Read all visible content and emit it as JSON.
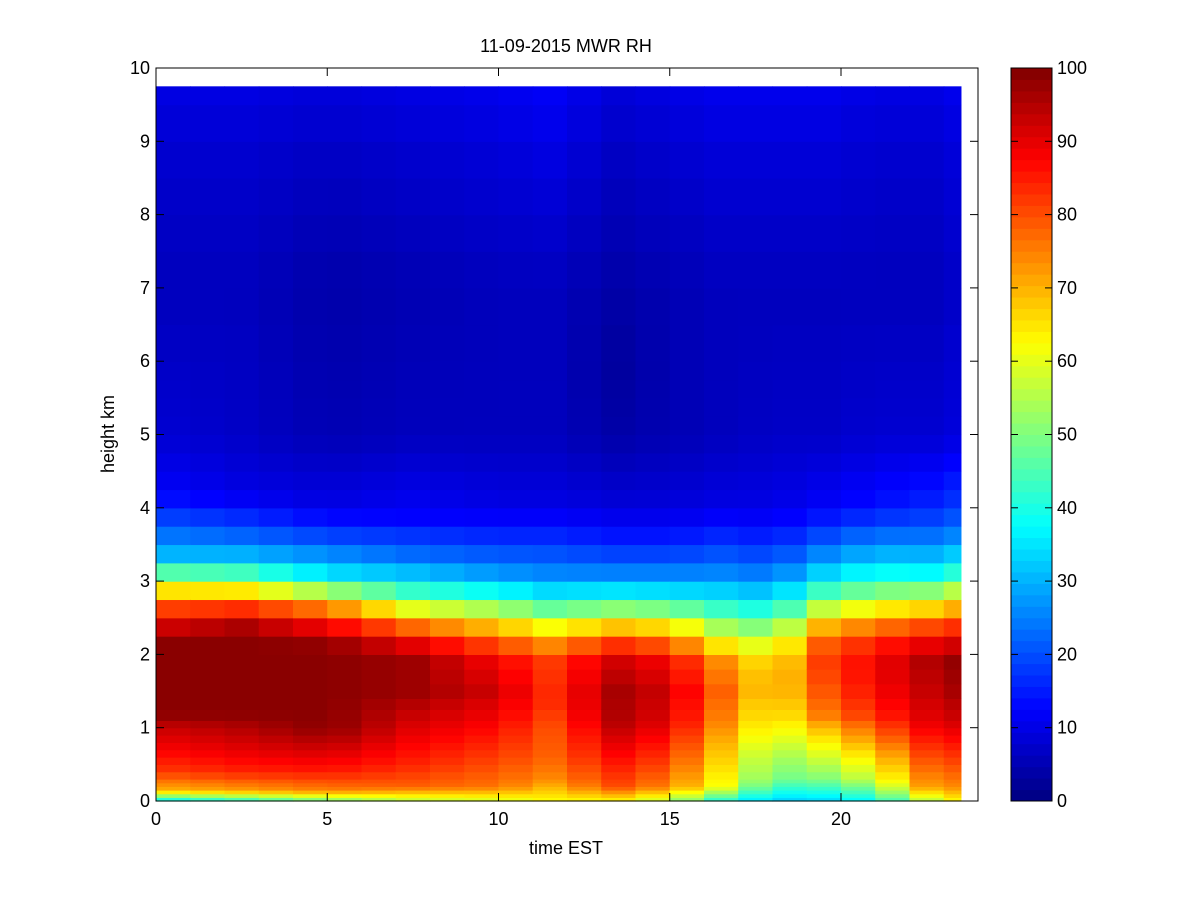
{
  "chart_data": {
    "type": "heatmap",
    "title": "11-09-2015 MWR RH",
    "xlabel": "time EST",
    "ylabel": "height km",
    "xlim": [
      0,
      24
    ],
    "ylim": [
      0,
      10
    ],
    "x_ticks": [
      "0",
      "5",
      "10",
      "15",
      "20"
    ],
    "y_ticks": [
      "0",
      "1",
      "2",
      "3",
      "4",
      "5",
      "6",
      "7",
      "8",
      "9",
      "10"
    ],
    "colorbar": {
      "colormap": "jet",
      "range": [
        0,
        100
      ],
      "ticks": [
        "0",
        "10",
        "20",
        "30",
        "40",
        "50",
        "60",
        "70",
        "80",
        "90",
        "100"
      ]
    },
    "grid": false,
    "x_centers": [
      0.5,
      1.5,
      2.5,
      3.5,
      4.5,
      5.5,
      6.5,
      7.5,
      8.5,
      9.5,
      10.5,
      11.5,
      12.5,
      13.5,
      14.5,
      15.5,
      16.5,
      17.5,
      18.5,
      19.5,
      20.5,
      21.5,
      22.5,
      23.5
    ],
    "height_levels_km": [
      0,
      0.05,
      0.1,
      0.15,
      0.2,
      0.25,
      0.3,
      0.4,
      0.5,
      0.6,
      0.7,
      0.8,
      0.9,
      1.0,
      1.1,
      1.25,
      1.4,
      1.6,
      1.8,
      2.0,
      2.25,
      2.5,
      2.75,
      3.0,
      3.25,
      3.5,
      3.75,
      4.0,
      4.25,
      4.5,
      4.75,
      5.0,
      5.25,
      5.5,
      5.75,
      6.0,
      6.5,
      7.0,
      7.5,
      8.0,
      8.5,
      9.0,
      9.5,
      9.75
    ],
    "profiles": [
      {
        "time": 0.5,
        "rh": [
          [
            0,
            35
          ],
          [
            0.15,
            70
          ],
          [
            0.4,
            82
          ],
          [
            0.7,
            88
          ],
          [
            1.0,
            93
          ],
          [
            1.2,
            99
          ],
          [
            2.2,
            99
          ],
          [
            2.5,
            88
          ],
          [
            2.75,
            75
          ],
          [
            3.0,
            55
          ],
          [
            3.3,
            32
          ],
          [
            3.7,
            22
          ],
          [
            4.2,
            12
          ],
          [
            5,
            8
          ],
          [
            7,
            6
          ],
          [
            9,
            8
          ],
          [
            9.75,
            10
          ]
        ]
      },
      {
        "time": 2.5,
        "rh": [
          [
            0,
            40
          ],
          [
            0.15,
            72
          ],
          [
            0.4,
            84
          ],
          [
            0.7,
            90
          ],
          [
            1.0,
            95
          ],
          [
            1.2,
            99
          ],
          [
            2.3,
            99
          ],
          [
            2.55,
            88
          ],
          [
            2.8,
            72
          ],
          [
            3.0,
            52
          ],
          [
            3.3,
            32
          ],
          [
            3.7,
            20
          ],
          [
            4.2,
            10
          ],
          [
            5,
            7
          ],
          [
            7,
            6
          ],
          [
            9,
            8
          ],
          [
            9.75,
            10
          ]
        ]
      },
      {
        "time": 5,
        "rh": [
          [
            0,
            48
          ],
          [
            0.15,
            75
          ],
          [
            0.4,
            85
          ],
          [
            0.7,
            92
          ],
          [
            1.0,
            99
          ],
          [
            2.1,
            99
          ],
          [
            2.35,
            90
          ],
          [
            2.6,
            78
          ],
          [
            2.85,
            55
          ],
          [
            3.1,
            35
          ],
          [
            3.5,
            22
          ],
          [
            4,
            10
          ],
          [
            5,
            5
          ],
          [
            7,
            4
          ],
          [
            9,
            7
          ],
          [
            9.75,
            9
          ]
        ]
      },
      {
        "time": 7.5,
        "rh": [
          [
            0,
            55
          ],
          [
            0.2,
            78
          ],
          [
            0.5,
            84
          ],
          [
            0.8,
            88
          ],
          [
            1.1,
            92
          ],
          [
            1.5,
            97
          ],
          [
            1.9,
            97
          ],
          [
            2.2,
            88
          ],
          [
            2.5,
            70
          ],
          [
            2.75,
            50
          ],
          [
            3.0,
            35
          ],
          [
            3.4,
            22
          ],
          [
            3.9,
            12
          ],
          [
            5,
            6
          ],
          [
            7,
            5
          ],
          [
            9,
            8
          ],
          [
            9.75,
            10
          ]
        ]
      },
      {
        "time": 10,
        "rh": [
          [
            0,
            58
          ],
          [
            0.2,
            76
          ],
          [
            0.5,
            80
          ],
          [
            0.8,
            84
          ],
          [
            1.1,
            88
          ],
          [
            1.5,
            92
          ],
          [
            1.9,
            88
          ],
          [
            2.2,
            78
          ],
          [
            2.5,
            62
          ],
          [
            2.75,
            45
          ],
          [
            3.0,
            30
          ],
          [
            3.5,
            18
          ],
          [
            4,
            10
          ],
          [
            5,
            6
          ],
          [
            7,
            6
          ],
          [
            9,
            9
          ],
          [
            9.75,
            11
          ]
        ]
      },
      {
        "time": 11.5,
        "rh": [
          [
            0,
            62
          ],
          [
            0.3,
            74
          ],
          [
            0.6,
            78
          ],
          [
            1.0,
            80
          ],
          [
            1.4,
            84
          ],
          [
            1.9,
            82
          ],
          [
            2.2,
            72
          ],
          [
            2.5,
            55
          ],
          [
            2.75,
            40
          ],
          [
            3.0,
            28
          ],
          [
            3.5,
            18
          ],
          [
            4,
            10
          ],
          [
            5,
            6
          ],
          [
            7,
            6
          ],
          [
            9,
            10
          ],
          [
            9.75,
            12
          ]
        ]
      },
      {
        "time": 13.5,
        "rh": [
          [
            0,
            62
          ],
          [
            0.2,
            80
          ],
          [
            0.5,
            85
          ],
          [
            0.8,
            90
          ],
          [
            1.1,
            95
          ],
          [
            1.5,
            96
          ],
          [
            1.9,
            92
          ],
          [
            2.2,
            80
          ],
          [
            2.5,
            60
          ],
          [
            2.75,
            42
          ],
          [
            3.0,
            28
          ],
          [
            3.5,
            16
          ],
          [
            4,
            9
          ],
          [
            5,
            4
          ],
          [
            6,
            3
          ],
          [
            7,
            4
          ],
          [
            9,
            7
          ],
          [
            9.75,
            9
          ]
        ]
      },
      {
        "time": 15,
        "rh": [
          [
            0,
            55
          ],
          [
            0.2,
            74
          ],
          [
            0.5,
            80
          ],
          [
            0.8,
            85
          ],
          [
            1.1,
            90
          ],
          [
            1.5,
            92
          ],
          [
            1.9,
            88
          ],
          [
            2.2,
            76
          ],
          [
            2.5,
            58
          ],
          [
            2.75,
            40
          ],
          [
            3.0,
            28
          ],
          [
            3.5,
            16
          ],
          [
            4,
            9
          ],
          [
            5,
            5
          ],
          [
            7,
            5
          ],
          [
            9,
            8
          ],
          [
            9.75,
            10
          ]
        ]
      },
      {
        "time": 16.5,
        "rh": [
          [
            0,
            40
          ],
          [
            0.2,
            62
          ],
          [
            0.5,
            66
          ],
          [
            0.8,
            70
          ],
          [
            1.1,
            75
          ],
          [
            1.5,
            78
          ],
          [
            1.9,
            74
          ],
          [
            2.2,
            62
          ],
          [
            2.5,
            48
          ],
          [
            2.75,
            38
          ],
          [
            3.0,
            28
          ],
          [
            3.5,
            18
          ],
          [
            4,
            10
          ],
          [
            5,
            6
          ],
          [
            7,
            6
          ],
          [
            9,
            9
          ],
          [
            9.75,
            11
          ]
        ]
      },
      {
        "time": 18,
        "rh": [
          [
            0,
            32
          ],
          [
            0.3,
            48
          ],
          [
            0.6,
            52
          ],
          [
            0.9,
            58
          ],
          [
            1.2,
            62
          ],
          [
            1.6,
            66
          ],
          [
            2.0,
            62
          ],
          [
            2.3,
            52
          ],
          [
            2.6,
            40
          ],
          [
            2.9,
            30
          ],
          [
            3.2,
            22
          ],
          [
            3.6,
            15
          ],
          [
            4,
            10
          ],
          [
            5,
            7
          ],
          [
            7,
            6
          ],
          [
            9,
            9
          ],
          [
            9.75,
            11
          ]
        ]
      },
      {
        "time": 19.5,
        "rh": [
          [
            0,
            33
          ],
          [
            0.3,
            50
          ],
          [
            0.6,
            58
          ],
          [
            0.9,
            66
          ],
          [
            1.2,
            76
          ],
          [
            1.6,
            80
          ],
          [
            2.0,
            82
          ],
          [
            2.3,
            74
          ],
          [
            2.6,
            58
          ],
          [
            2.9,
            42
          ],
          [
            3.2,
            30
          ],
          [
            3.6,
            20
          ],
          [
            4,
            12
          ],
          [
            5,
            7
          ],
          [
            7,
            6
          ],
          [
            9,
            9
          ],
          [
            9.75,
            11
          ]
        ]
      },
      {
        "time": 21,
        "rh": [
          [
            0,
            38
          ],
          [
            0.3,
            58
          ],
          [
            0.6,
            66
          ],
          [
            0.9,
            76
          ],
          [
            1.2,
            84
          ],
          [
            1.6,
            88
          ],
          [
            2.0,
            88
          ],
          [
            2.3,
            80
          ],
          [
            2.6,
            65
          ],
          [
            2.9,
            48
          ],
          [
            3.2,
            35
          ],
          [
            3.6,
            24
          ],
          [
            4,
            14
          ],
          [
            5,
            8
          ],
          [
            7,
            6
          ],
          [
            9,
            8
          ],
          [
            9.75,
            10
          ]
        ]
      },
      {
        "time": 22.5,
        "rh": [
          [
            0,
            55
          ],
          [
            0.2,
            72
          ],
          [
            0.5,
            78
          ],
          [
            0.8,
            84
          ],
          [
            1.1,
            90
          ],
          [
            1.5,
            93
          ],
          [
            1.9,
            95
          ],
          [
            2.2,
            88
          ],
          [
            2.5,
            75
          ],
          [
            2.8,
            55
          ],
          [
            3.1,
            38
          ],
          [
            3.5,
            26
          ],
          [
            4,
            16
          ],
          [
            5,
            8
          ],
          [
            7,
            6
          ],
          [
            9,
            8
          ],
          [
            9.75,
            10
          ]
        ]
      },
      {
        "time": 23.5,
        "rh": [
          [
            0,
            62
          ],
          [
            0.2,
            74
          ],
          [
            0.5,
            80
          ],
          [
            0.8,
            86
          ],
          [
            1.1,
            92
          ],
          [
            1.5,
            96
          ],
          [
            1.9,
            98
          ],
          [
            2.2,
            90
          ],
          [
            2.5,
            78
          ],
          [
            2.8,
            60
          ],
          [
            3.1,
            42
          ],
          [
            3.5,
            28
          ],
          [
            4,
            18
          ],
          [
            5,
            9
          ],
          [
            7,
            7
          ],
          [
            9,
            9
          ],
          [
            9.75,
            11
          ]
        ]
      }
    ]
  }
}
